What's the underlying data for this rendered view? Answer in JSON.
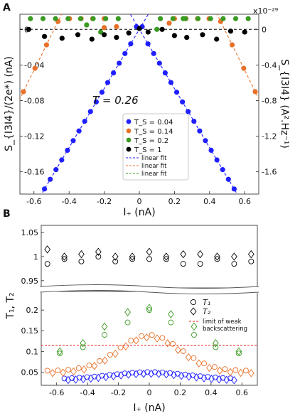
{
  "chart_data": [
    {
      "panel_label": "A",
      "type": "scatter",
      "xlabel": "I₊ (nA)",
      "ylabel_left": "S_{I3I4}/(2e*) (nA)",
      "ylabel_right": "S_{I3I4} (A².Hz⁻¹)",
      "right_axis_multiplier": "x10⁻²⁹",
      "annotation": "T = 0.26",
      "xlim": [
        -0.68,
        0.68
      ],
      "ylim": [
        -0.185,
        0.017
      ],
      "x_ticks": [
        "-0.6",
        "-0.4",
        "-0.2",
        "0",
        "0.2",
        "0.4",
        "0.6"
      ],
      "x_tick_values": [
        -0.6,
        -0.4,
        -0.2,
        0,
        0.2,
        0.4,
        0.6
      ],
      "y_ticks_left": [
        "0",
        "-0.04",
        "-0.08",
        "-0.12",
        "-0.16"
      ],
      "y_tick_values_left": [
        0,
        -0.04,
        -0.08,
        -0.12,
        -0.16
      ],
      "y_ticks_right": [
        "0",
        "-0.4",
        "-0.8",
        "-1.2",
        "-1.6"
      ],
      "y_tick_values_right": [
        0,
        -0.4,
        -0.8,
        -1.2,
        -1.6
      ],
      "right_to_left_factor": 0.1,
      "legend": {
        "placement": "center",
        "series_labels": [
          "T_S = 0.04",
          "T_S = 0.14",
          "T_S = 0.2",
          "T_S = 1"
        ],
        "fit_labels": [
          "linear fit",
          "linear fit",
          "linear fit"
        ]
      },
      "series": [
        {
          "name": "T_S = 0.04",
          "color": "#1f1fff",
          "slope": -0.332,
          "x_from": -0.54,
          "x_to": 0.54,
          "count": 34
        },
        {
          "name": "T_S = 0.14",
          "color": "#e8712a",
          "slope": -0.4,
          "offset": 0.194,
          "x_abs_from": 0.2,
          "x_abs_to": 0.66,
          "count": 8
        },
        {
          "name": "T_S = 0.2",
          "color": "#3a9a22",
          "slope": -0.4,
          "offset": 0.37,
          "x_abs_from": 0.12,
          "x_abs_to": 0.62,
          "count": 8
        },
        {
          "name": "T_S = 1",
          "color": "#000000",
          "values_approx": 0
        }
      ],
      "fits": [
        {
          "color": "#1f1fff",
          "slope": -0.332,
          "offset": 0
        },
        {
          "color": "#e8712a",
          "slope": -0.4,
          "offset": 0.194
        },
        {
          "color": "#3a9a22",
          "slope": -0.4,
          "offset": 0.37
        }
      ],
      "zero_line": 0
    },
    {
      "panel_label": "B",
      "type": "scatter",
      "xlabel": "I₊ (nA)",
      "ylabel": "T₁, T₂",
      "xlim": [
        -0.7,
        0.7
      ],
      "x_ticks": [
        "-0.6",
        "-0.4",
        "-0.2",
        "0",
        "0.2",
        "0.4",
        "0.6"
      ],
      "x_tick_values": [
        -0.6,
        -0.4,
        -0.2,
        0,
        0.2,
        0.4,
        0.6
      ],
      "upper_ylim": [
        0.935,
        1.065
      ],
      "upper_yticks": [
        "1.05",
        "1",
        "0.95"
      ],
      "upper_ytick_values": [
        1.05,
        1,
        0.95
      ],
      "lower_ylim": [
        0.018,
        0.245
      ],
      "lower_yticks": [
        "0.2",
        "0.15",
        "0.1",
        "0.05"
      ],
      "lower_ytick_values": [
        0.2,
        0.15,
        0.1,
        0.05
      ],
      "weak_backscattering_limit": 0.115,
      "legend": {
        "placement": "top-right",
        "t1": "T₁",
        "t2": "T₂",
        "limit_line1": "limit of weak",
        "limit_line2": "backscattering"
      },
      "series": [
        {
          "name": "T_S = 1",
          "color": "#000000",
          "x": [
            -0.66,
            -0.55,
            -0.44,
            -0.33,
            -0.22,
            -0.11,
            0,
            0.11,
            0.22,
            0.33,
            0.44,
            0.55,
            0.66
          ],
          "t1": [
            0.985,
            0.995,
            0.99,
            1.0,
            0.99,
            0.995,
            0.995,
            0.995,
            0.985,
            0.985,
            0.995,
            0.985,
            0.99
          ],
          "t2": [
            1.015,
            1.0,
            1.005,
            1.01,
            1.0,
            1.0,
            1.01,
            1.0,
            1.005,
            1.005,
            1.0,
            1.0,
            1.005
          ]
        },
        {
          "name": "T_S = 0.2",
          "color": "#3a9a22",
          "x": [
            -0.58,
            -0.43,
            -0.29,
            -0.14,
            0,
            0.14,
            0.29,
            0.43,
            0.58
          ],
          "t1": [
            0.095,
            0.11,
            0.14,
            0.17,
            0.2,
            0.17,
            0.14,
            0.11,
            0.095
          ],
          "t2": [
            0.1,
            0.12,
            0.16,
            0.195,
            0.205,
            0.19,
            0.16,
            0.12,
            0.1
          ]
        }
      ],
      "orange_series": {
        "color": "#e8712a",
        "x_from": -0.66,
        "x_to": 0.66,
        "count": 40,
        "base": 0.053,
        "peak": 0.14,
        "width": 0.2
      },
      "blue_series": {
        "color": "#1f1fff",
        "x_from": -0.55,
        "x_to": 0.55,
        "count": 46,
        "base": 0.033,
        "peak": 0.05,
        "width": 0.25
      }
    }
  ]
}
